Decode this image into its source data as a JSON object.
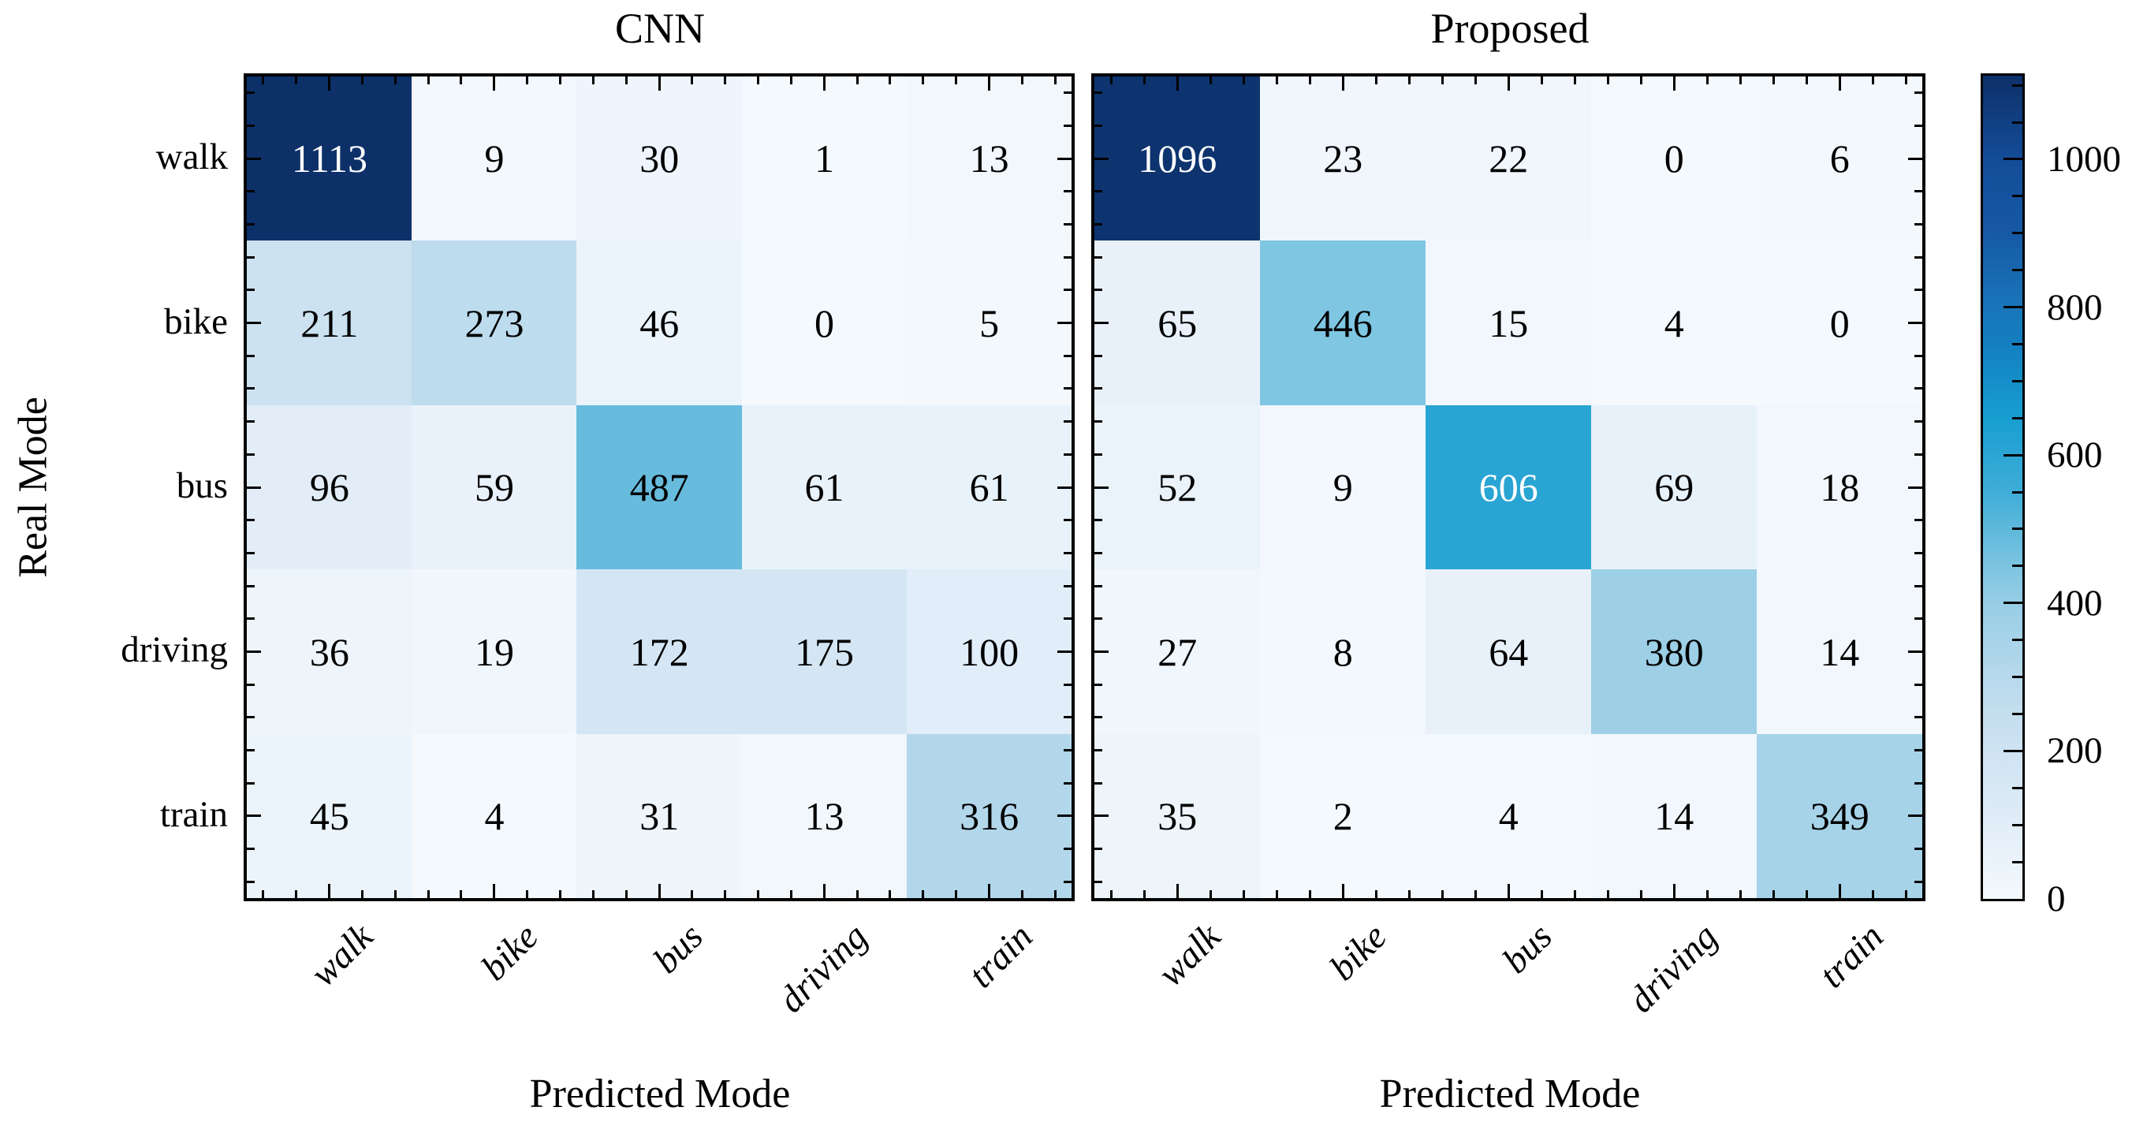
{
  "chart_data": [
    {
      "type": "heatmap",
      "title": "CNN",
      "xlabel": "Predicted Mode",
      "ylabel": "Real Mode",
      "x_categories": [
        "walk",
        "bike",
        "bus",
        "driving",
        "train"
      ],
      "y_categories": [
        "walk",
        "bike",
        "bus",
        "driving",
        "train"
      ],
      "values": [
        [
          1113,
          9,
          30,
          1,
          13
        ],
        [
          211,
          273,
          46,
          0,
          5
        ],
        [
          96,
          59,
          487,
          61,
          61
        ],
        [
          36,
          19,
          172,
          175,
          100
        ],
        [
          45,
          4,
          31,
          13,
          316
        ]
      ],
      "vmin": 0,
      "vmax": 1113,
      "legend_position": "shared-colorbar-right",
      "grid": false
    },
    {
      "type": "heatmap",
      "title": "Proposed",
      "xlabel": "Predicted Mode",
      "x_categories": [
        "walk",
        "bike",
        "bus",
        "driving",
        "train"
      ],
      "y_categories": [
        "walk",
        "bike",
        "bus",
        "driving",
        "train"
      ],
      "values": [
        [
          1096,
          23,
          22,
          0,
          6
        ],
        [
          65,
          446,
          15,
          4,
          0
        ],
        [
          52,
          9,
          606,
          69,
          18
        ],
        [
          27,
          8,
          64,
          380,
          14
        ],
        [
          35,
          2,
          4,
          14,
          349
        ]
      ],
      "vmin": 0,
      "vmax": 1113,
      "legend_position": "shared-colorbar-right",
      "grid": false
    }
  ],
  "colorbar": {
    "tick_labels": [
      "0",
      "200",
      "400",
      "600",
      "800",
      "1000"
    ],
    "tick_values": [
      0,
      200,
      400,
      600,
      800,
      1000
    ],
    "minor_tick_step": 50,
    "vmin": 0,
    "vmax": 1113,
    "gradient_stops": [
      {
        "value": 0,
        "color": "#f4f9fd"
      },
      {
        "value": 100,
        "color": "#e1edf8"
      },
      {
        "value": 200,
        "color": "#cfe3f2"
      },
      {
        "value": 300,
        "color": "#b7d9ec"
      },
      {
        "value": 400,
        "color": "#97cde5"
      },
      {
        "value": 450,
        "color": "#7cc5e1"
      },
      {
        "value": 500,
        "color": "#5fb8db"
      },
      {
        "value": 550,
        "color": "#3fadd7"
      },
      {
        "value": 650,
        "color": "#179ed1"
      },
      {
        "value": 750,
        "color": "#137fc1"
      },
      {
        "value": 800,
        "color": "#1a75ba"
      },
      {
        "value": 900,
        "color": "#1659a5"
      },
      {
        "value": 1000,
        "color": "#134c98"
      },
      {
        "value": 1113,
        "color": "#0d3068"
      }
    ]
  },
  "style": {
    "background": "#ffffff",
    "axis_color": "#000000",
    "text_color": "#000000",
    "cell_text_dark": "#000000",
    "cell_text_light": "#ffffff",
    "light_text_threshold": 550
  }
}
